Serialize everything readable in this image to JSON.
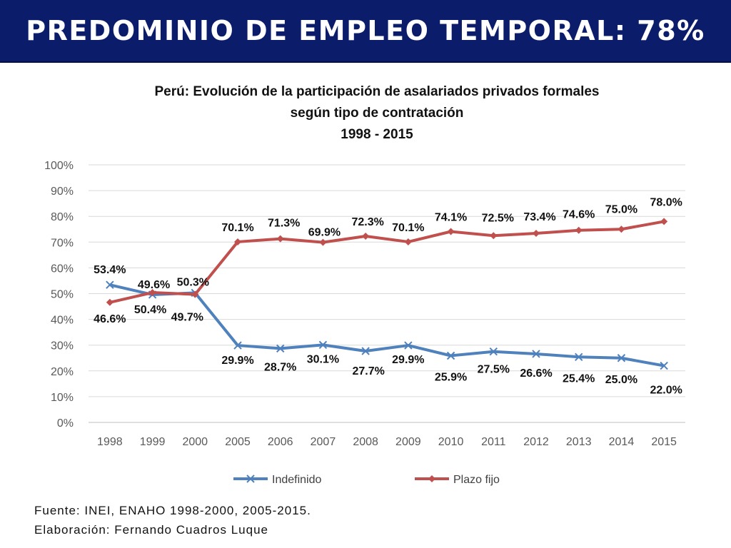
{
  "header": {
    "title": "PREDOMINIO DE EMPLEO TEMPORAL: 78%"
  },
  "footer": {
    "source": "Fuente: INEI, ENAHO 1998-2000, 2005-2015.",
    "author": "Elaboración: Fernando Cuadros Luque"
  },
  "chart_data": {
    "type": "line",
    "title": [
      "Perú: Evolución de la participación de asalariados privados formales",
      "según tipo de contratación",
      "1998 - 2015"
    ],
    "x": [
      "1998",
      "1999",
      "2000",
      "2005",
      "2006",
      "2007",
      "2008",
      "2009",
      "2010",
      "2011",
      "2012",
      "2013",
      "2014",
      "2015"
    ],
    "ylim": [
      0,
      100
    ],
    "yticks": [
      "0%",
      "10%",
      "20%",
      "30%",
      "40%",
      "50%",
      "60%",
      "70%",
      "80%",
      "90%",
      "100%"
    ],
    "grid": true,
    "legend": "bottom",
    "series": [
      {
        "name": "Indefinido",
        "color": "#4f81bd",
        "marker": "x",
        "values": [
          53.4,
          49.6,
          50.3,
          29.9,
          28.7,
          30.1,
          27.7,
          29.9,
          25.9,
          27.5,
          26.6,
          25.4,
          25.0,
          22.0
        ],
        "labels": [
          "53.4%",
          "49.6%",
          "50.3%",
          "29.9%",
          "28.7%",
          "30.1%",
          "27.7%",
          "29.9%",
          "25.9%",
          "27.5%",
          "26.6%",
          "25.4%",
          "25.0%",
          "22.0%"
        ]
      },
      {
        "name": "Plazo fijo",
        "color": "#c0504d",
        "marker": "diamond",
        "values": [
          46.6,
          50.4,
          49.7,
          70.1,
          71.3,
          69.9,
          72.3,
          70.1,
          74.1,
          72.5,
          73.4,
          74.6,
          75.0,
          78.0
        ],
        "labels": [
          "46.6%",
          "50.4%",
          "49.7%",
          "70.1%",
          "71.3%",
          "69.9%",
          "72.3%",
          "70.1%",
          "74.1%",
          "72.5%",
          "73.4%",
          "74.6%",
          "75.0%",
          "78.0%"
        ]
      }
    ]
  }
}
